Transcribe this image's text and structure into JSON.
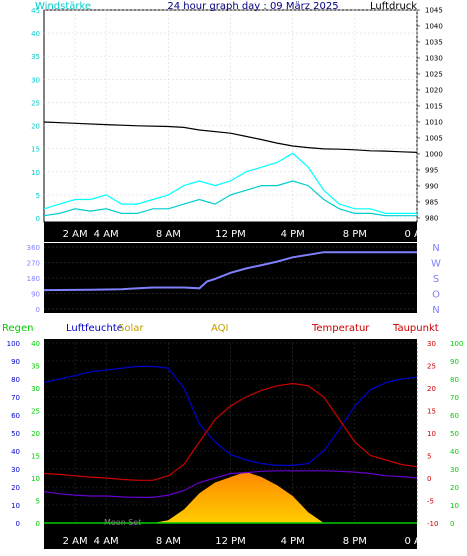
{
  "header": {
    "left_label": "Windstärke",
    "title": "24 hour graph day : 09 März 2025",
    "right_label": "Luftdruck"
  },
  "colors": {
    "background": "#ffffff",
    "plot_bg": "#000000",
    "wind": "#00cccc",
    "gust": "#00ffff",
    "pressure": "#000000",
    "direction": "#8080ff",
    "rain": "#00cc00",
    "humidity": "#0000cc",
    "solar": "#ffcc00",
    "solar_top": "#ff8800",
    "aqi": "#c0a000",
    "temperature": "#cc0000",
    "dewpoint": "#6600cc",
    "white": "#ffffff"
  },
  "x_axis": {
    "labels": [
      "2 AM",
      "4 AM",
      "8 AM",
      "12 PM",
      "4 PM",
      "8 PM",
      "0 AM"
    ],
    "label_hours": [
      2,
      4,
      8,
      12,
      16,
      20,
      24
    ]
  },
  "chart_data": [
    {
      "type": "line",
      "title": "Windstärke",
      "ylim_left": [
        0,
        45
      ],
      "left_ticks": [
        "0",
        "5",
        "10",
        "15",
        "20",
        "25",
        "30",
        "35",
        "40",
        "45"
      ],
      "ylim_right": [
        980,
        1045
      ],
      "right_ticks": [
        "980",
        "985",
        "990",
        "995",
        "1000",
        "1005",
        "1010",
        "1015",
        "1020",
        "1025",
        "1030",
        "1035",
        "1040",
        "1045"
      ],
      "series": [
        {
          "name": "Luftdruck",
          "x": [
            0,
            2,
            4,
            6,
            8,
            9,
            10,
            12,
            13,
            14,
            15,
            16,
            17,
            18,
            19,
            20,
            21,
            22,
            23,
            24
          ],
          "values": [
            1010,
            1009.6,
            1009.2,
            1008.8,
            1008.6,
            1008.3,
            1007.5,
            1006.5,
            1005.5,
            1004.5,
            1003.4,
            1002.5,
            1002,
            1001.6,
            1001.5,
            1001.3,
            1001,
            1000.9,
            1000.7,
            1000.5
          ]
        },
        {
          "x": [
            0,
            1,
            2,
            3,
            4,
            5,
            6,
            7,
            8,
            9,
            10,
            11,
            12,
            13,
            14,
            15,
            16,
            17,
            18,
            19,
            20,
            21,
            22,
            23,
            24
          ],
          "values": [
            0.5,
            1,
            2,
            1.5,
            2,
            1,
            1,
            2,
            2,
            3,
            4,
            3,
            5,
            6,
            7,
            7,
            8,
            7,
            4,
            2,
            1,
            1,
            0.5,
            0.5,
            0.5
          ]
        },
        {
          "x": [
            0,
            1,
            2,
            3,
            4,
            5,
            6,
            7,
            8,
            9,
            10,
            11,
            12,
            13,
            14,
            15,
            16,
            17,
            18,
            19,
            20,
            21,
            22,
            23,
            24
          ],
          "values": [
            2,
            3,
            4,
            4,
            5,
            3,
            3,
            4,
            5,
            7,
            8,
            7,
            8,
            10,
            11,
            12,
            14,
            11,
            6,
            3,
            2,
            2,
            1,
            1,
            1
          ]
        }
      ]
    },
    {
      "type": "line",
      "ylim": [
        0,
        360
      ],
      "left_ticks": [
        "0",
        "90",
        "180",
        "270",
        "360"
      ],
      "right_labels": [
        "N",
        "W",
        "S",
        "O",
        "N"
      ],
      "series": [
        {
          "x": [
            0,
            3,
            5,
            7,
            9,
            10,
            10.5,
            11,
            12,
            13,
            14,
            15,
            16,
            17,
            18,
            19,
            20,
            21,
            22,
            23,
            24
          ],
          "values": [
            110,
            112,
            115,
            125,
            125,
            120,
            160,
            175,
            210,
            235,
            255,
            275,
            300,
            315,
            330,
            330,
            330,
            330,
            330,
            330,
            330
          ]
        }
      ]
    },
    {
      "type": "line",
      "legend": [
        "Regen",
        "Luftfeuchte",
        "Solar",
        "AQI",
        "Temperatur",
        "Taupunkt"
      ],
      "annotation": "Moon Set",
      "ylim_rain": [
        0,
        40
      ],
      "rain_ticks": [
        "0",
        "5",
        "10",
        "15",
        "20",
        "25",
        "30",
        "35",
        "40"
      ],
      "ylim_humidity": [
        0,
        100
      ],
      "humidity_ticks": [
        "0",
        "10",
        "20",
        "30",
        "40",
        "50",
        "60",
        "70",
        "80",
        "90",
        "100"
      ],
      "ylim_temp": [
        -10,
        30
      ],
      "temp_ticks": [
        "-10",
        "-5",
        "0",
        "5",
        "10",
        "15",
        "20",
        "25",
        "30"
      ],
      "right_ticks": [
        "0",
        "10",
        "20",
        "30",
        "40",
        "50",
        "60",
        "70",
        "80",
        "90",
        "100"
      ],
      "series": [
        {
          "name": "Luftfeuchte",
          "x": [
            0,
            1,
            2,
            3,
            4,
            5,
            6,
            7,
            8,
            9,
            10,
            11,
            12,
            13,
            14,
            15,
            16,
            17,
            18,
            19,
            20,
            21,
            22,
            23,
            24
          ],
          "values": [
            78,
            80,
            82,
            84,
            85,
            86,
            87,
            87,
            86,
            75,
            55,
            45,
            38,
            35,
            33,
            32,
            32,
            33,
            40,
            52,
            65,
            74,
            78,
            80,
            81
          ]
        },
        {
          "name": "Temperatur",
          "x": [
            0,
            1,
            2,
            3,
            4,
            5,
            6,
            7,
            8,
            9,
            10,
            11,
            12,
            13,
            14,
            15,
            16,
            17,
            18,
            19,
            20,
            21,
            22,
            23,
            24
          ],
          "values": [
            1,
            0.8,
            0.5,
            0.2,
            0,
            -0.3,
            -0.5,
            -0.5,
            0.5,
            3,
            8,
            13,
            16,
            18,
            19.5,
            20.5,
            21,
            20.5,
            18,
            13,
            8,
            5,
            4,
            3,
            2.5
          ]
        },
        {
          "name": "Taupunkt",
          "x": [
            0,
            1,
            2,
            3,
            4,
            5,
            6,
            7,
            8,
            9,
            10,
            11,
            12,
            13,
            14,
            15,
            16,
            17,
            18,
            19,
            20,
            21,
            22,
            23,
            24
          ],
          "values": [
            -3,
            -3.5,
            -3.8,
            -4,
            -4,
            -4.2,
            -4.3,
            -4.3,
            -3.8,
            -2.8,
            -1,
            0,
            1,
            1.2,
            1.5,
            1.6,
            1.6,
            1.6,
            1.6,
            1.5,
            1.3,
            1,
            0.5,
            0.3,
            0
          ]
        },
        {
          "name": "Solar",
          "x": [
            0,
            6,
            7,
            8,
            9,
            10,
            11,
            12,
            13,
            14,
            15,
            16,
            17,
            18,
            24
          ],
          "values": [
            0,
            0,
            0,
            5,
            25,
            55,
            75,
            85,
            95,
            85,
            70,
            50,
            20,
            0,
            0
          ]
        }
      ]
    }
  ]
}
